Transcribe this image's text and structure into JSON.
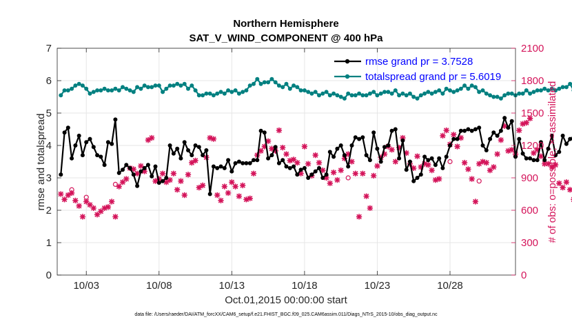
{
  "chart_data": {
    "type": "line",
    "title_line1": "Northern Hemisphere",
    "title_line2": "SAT_V_WIND_COMPONENT @ 400 hPa",
    "xlabel": "Oct.01,2015 00:00:00 start",
    "ylabel": "rmse and totalspread",
    "ylabel_right": "# of obs: o=possible; ×=assimilated",
    "footer": "data file: /Users/raeder/DAI/ATM_forcXX/CAM6_setup/f.e21.FHIST_BGC.f09_025.CAM6assim.011/Diags_NTrS_2015-10/obs_diag_output.nc",
    "xlim": [
      1.0,
      32.5
    ],
    "ylim": [
      0,
      7
    ],
    "ylim_right": [
      0,
      2100
    ],
    "x_ticks": [
      3,
      8,
      13,
      18,
      23,
      28
    ],
    "x_tick_labels": [
      "10/03",
      "10/08",
      "10/13",
      "10/18",
      "10/23",
      "10/28"
    ],
    "y_ticks": [
      0,
      1,
      2,
      3,
      4,
      5,
      6,
      7
    ],
    "y_tick_labels": [
      "0",
      "1",
      "2",
      "3",
      "4",
      "5",
      "6",
      "7"
    ],
    "y_right_ticks": [
      0,
      300,
      600,
      900,
      1200,
      1500,
      1800,
      2100
    ],
    "y_right_tick_labels": [
      "0",
      "300",
      "600",
      "900",
      "1200",
      "1500",
      "1800",
      "2100"
    ],
    "x_start": 1.25,
    "x_step": 0.25,
    "series": [
      {
        "name": "rmse grand pr = 3.7528",
        "color": "#000000",
        "axis": "left",
        "values": [
          3.1,
          4.4,
          4.55,
          3.6,
          4.0,
          4.3,
          3.7,
          4.1,
          4.2,
          3.95,
          3.7,
          3.65,
          3.4,
          4.1,
          4.05,
          4.8,
          3.15,
          3.25,
          3.4,
          3.3,
          3.1,
          2.75,
          3.2,
          3.3,
          3.4,
          3.05,
          3.35,
          2.85,
          2.9,
          3.0,
          4.0,
          3.75,
          3.9,
          3.6,
          4.1,
          3.85,
          3.7,
          4.0,
          3.95,
          3.7,
          3.85,
          2.5,
          3.35,
          3.3,
          3.35,
          3.3,
          3.55,
          3.2,
          3.45,
          3.5,
          3.45,
          3.45,
          3.45,
          3.55,
          3.55,
          4.45,
          4.4,
          3.6,
          3.7,
          3.95,
          3.45,
          3.55,
          3.35,
          3.3,
          3.35,
          3.1,
          3.25,
          3.3,
          3.0,
          3.1,
          3.2,
          3.3,
          3.0,
          3.1,
          3.8,
          3.65,
          3.9,
          4.0,
          3.7,
          3.35,
          4.0,
          4.25,
          4.2,
          4.25,
          3.7,
          3.55,
          4.4,
          3.9,
          3.5,
          3.95,
          4.0,
          4.45,
          4.5,
          3.6,
          4.15,
          3.25,
          3.5,
          2.9,
          3.0,
          3.1,
          3.65,
          3.55,
          3.6,
          3.4,
          3.6,
          3.3,
          3.65,
          4.0,
          4.2,
          4.2,
          4.45,
          4.45,
          4.5,
          4.45,
          4.5,
          4.55,
          4.0,
          3.85,
          4.2,
          4.4,
          4.3,
          4.45,
          4.85,
          4.55,
          4.75,
          3.65,
          4.2,
          3.75,
          3.6,
          3.6,
          3.55,
          3.55,
          4.1,
          3.55,
          3.9,
          4.3,
          3.7,
          3.8,
          4.3,
          4.05,
          4.2,
          4.25,
          3.4,
          3.3,
          3.15,
          3.1
        ]
      },
      {
        "name": "totalspread grand pr = 5.6019",
        "color": "#008080",
        "axis": "left",
        "values": [
          5.55,
          5.7,
          5.7,
          5.75,
          5.85,
          5.9,
          5.85,
          5.75,
          5.6,
          5.65,
          5.7,
          5.7,
          5.75,
          5.7,
          5.7,
          5.75,
          5.7,
          5.8,
          5.75,
          5.7,
          5.65,
          5.8,
          5.75,
          5.85,
          5.8,
          5.8,
          5.85,
          5.85,
          5.65,
          5.75,
          5.85,
          5.85,
          5.9,
          5.85,
          5.9,
          5.75,
          5.85,
          5.7,
          5.55,
          5.55,
          5.6,
          5.6,
          5.55,
          5.6,
          5.65,
          5.6,
          5.7,
          5.65,
          5.7,
          5.6,
          5.65,
          5.7,
          5.85,
          5.9,
          6.05,
          5.9,
          5.95,
          5.95,
          6.05,
          5.95,
          5.85,
          5.8,
          5.9,
          5.75,
          5.85,
          5.8,
          5.7,
          5.7,
          5.65,
          5.6,
          5.65,
          5.55,
          5.6,
          5.65,
          5.55,
          5.6,
          5.55,
          5.5,
          5.45,
          5.6,
          5.55,
          5.55,
          5.6,
          5.55,
          5.55,
          5.6,
          5.65,
          5.55,
          5.6,
          5.65,
          5.65,
          5.6,
          5.7,
          5.55,
          5.6,
          5.55,
          5.6,
          5.5,
          5.45,
          5.55,
          5.6,
          5.65,
          5.6,
          5.65,
          5.7,
          5.6,
          5.75,
          5.7,
          5.65,
          5.7,
          5.75,
          5.85,
          5.75,
          5.85,
          5.8,
          5.65,
          5.7,
          5.6,
          5.55,
          5.5,
          5.5,
          5.45,
          5.55,
          5.6,
          5.6,
          5.55,
          5.6,
          5.6,
          5.7,
          5.6,
          5.65,
          5.7,
          5.7,
          5.75,
          5.7,
          5.75,
          5.7,
          5.75,
          5.8,
          5.8,
          5.9,
          5.7,
          5.8,
          5.75
        ]
      },
      {
        "name": "obs assimilated",
        "color": "#d4145a",
        "axis": "right",
        "marker": "x",
        "values": [
          750,
          700,
          740,
          760,
          690,
          640,
          540,
          680,
          650,
          620,
          560,
          590,
          620,
          630,
          680,
          540,
          820,
          860,
          890,
          990,
          980,
          940,
          1010,
          960,
          1250,
          1270,
          870,
          890,
          940,
          860,
          880,
          940,
          790,
          870,
          740,
          930,
          1040,
          1060,
          810,
          830,
          1090,
          1270,
          1260,
          740,
          690,
          820,
          760,
          860,
          820,
          730,
          830,
          700,
          710,
          940,
          1110,
          1150,
          1190,
          1240,
          1170,
          1150,
          1340,
          1180,
          1120,
          1060,
          1070,
          1040,
          940,
          1190,
          1030,
          920,
          1110,
          1040,
          970,
          900,
          850,
          950,
          880,
          970,
          1080,
          1120,
          1050,
          940,
          540,
          940,
          730,
          620,
          920,
          1010,
          1090,
          1120,
          1190,
          1160,
          1050,
          1180,
          1270,
          1130,
          1030,
          990,
          1100,
          1000,
          1030,
          1020,
          970,
          880,
          890,
          1290,
          1340,
          1210,
          1300,
          1190,
          1270,
          1040,
          980,
          890,
          680,
          1030,
          1050,
          1040,
          970,
          1000,
          1120,
          1250,
          1380,
          1150,
          1160,
          1120,
          1340,
          1400,
          1410,
          1450,
          1130,
          1160,
          1100,
          1030,
          1030,
          1000,
          1020,
          850,
          810,
          860,
          790,
          700,
          660,
          630
        ]
      },
      {
        "name": "obs possible",
        "color": "#d4145a",
        "axis": "right",
        "marker": "o",
        "points": [
          [
            2.0,
            790
          ],
          [
            3.0,
            720
          ],
          [
            5.0,
            840
          ],
          [
            21.0,
            900
          ],
          [
            28.0,
            1050
          ],
          [
            30.0,
            870
          ]
        ]
      }
    ]
  }
}
